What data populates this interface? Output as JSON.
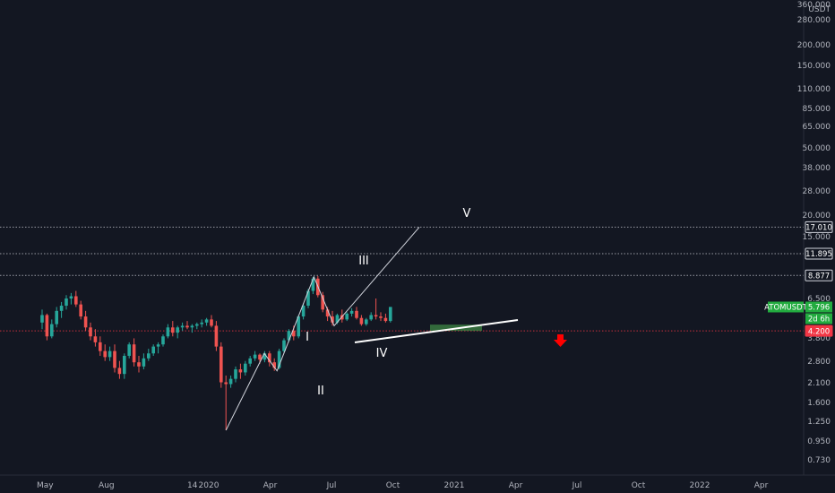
{
  "chart_data": {
    "type": "candlestick",
    "symbol": "ATOMUSDT",
    "currency": "USDT",
    "price_axis_labels": [
      "360.000",
      "280.000",
      "200.000",
      "150.000",
      "110.000",
      "85.000",
      "65.000",
      "50.000",
      "38.000",
      "28.000",
      "20.000",
      "15.000",
      "6.500",
      "3.800",
      "2.800",
      "2.100",
      "1.600",
      "1.250",
      "0.950",
      "0.730"
    ],
    "time_axis_labels": [
      "May",
      "Aug",
      "14",
      "2020",
      "Apr",
      "Jul",
      "Oct",
      "2021",
      "Apr",
      "Jul",
      "Oct",
      "2022",
      "Apr"
    ],
    "horizontal_levels": [
      {
        "value": 17.01,
        "label": "17.010",
        "style": "dotted"
      },
      {
        "value": 11.895,
        "label": "11.895",
        "style": "dotted"
      },
      {
        "value": 8.877,
        "label": "8.877",
        "style": "dotted"
      },
      {
        "value": 4.2,
        "label": "4.200",
        "style": "dotted",
        "color": "#f23645"
      }
    ],
    "last_price": {
      "value": 5.796,
      "label": "5.796",
      "symbol_label": "ATOMUSDT",
      "countdown": "2d 6h"
    },
    "wave_labels": [
      "I",
      "II",
      "III",
      "IV",
      "V"
    ],
    "colors": {
      "up": "#26a69a",
      "down": "#ef5350",
      "background": "#131722",
      "trendline": "#ffffff",
      "target": "#ff0000",
      "last_price": "#22ab3f"
    },
    "candles": [
      [
        4.7,
        5.6,
        4.3,
        5.2
      ],
      [
        5.2,
        5.3,
        3.7,
        3.9
      ],
      [
        3.9,
        4.9,
        3.8,
        4.6
      ],
      [
        4.6,
        5.8,
        4.4,
        5.5
      ],
      [
        5.5,
        6.2,
        5.0,
        5.9
      ],
      [
        5.9,
        6.8,
        5.6,
        6.5
      ],
      [
        6.5,
        7.0,
        6.0,
        6.7
      ],
      [
        6.7,
        7.2,
        5.8,
        6.0
      ],
      [
        6.0,
        6.3,
        4.9,
        5.1
      ],
      [
        5.1,
        5.5,
        4.2,
        4.4
      ],
      [
        4.4,
        4.7,
        3.7,
        3.9
      ],
      [
        3.9,
        4.3,
        3.4,
        3.6
      ],
      [
        3.6,
        3.9,
        3.0,
        3.2
      ],
      [
        3.2,
        3.5,
        2.8,
        2.95
      ],
      [
        2.95,
        3.4,
        2.8,
        3.2
      ],
      [
        3.2,
        3.5,
        2.4,
        2.55
      ],
      [
        2.55,
        2.8,
        2.2,
        2.35
      ],
      [
        2.35,
        3.1,
        2.2,
        3.0
      ],
      [
        3.0,
        3.6,
        2.9,
        3.5
      ],
      [
        3.5,
        3.8,
        2.6,
        2.75
      ],
      [
        2.75,
        3.0,
        2.4,
        2.6
      ],
      [
        2.6,
        3.1,
        2.5,
        2.9
      ],
      [
        2.9,
        3.3,
        2.8,
        3.1
      ],
      [
        3.1,
        3.5,
        3.0,
        3.4
      ],
      [
        3.4,
        3.6,
        3.1,
        3.5
      ],
      [
        3.5,
        4.0,
        3.4,
        3.9
      ],
      [
        3.9,
        4.6,
        3.8,
        4.4
      ],
      [
        4.4,
        4.8,
        3.9,
        4.1
      ],
      [
        4.1,
        4.5,
        3.8,
        4.4
      ],
      [
        4.4,
        4.7,
        4.2,
        4.5
      ],
      [
        4.5,
        4.8,
        4.3,
        4.4
      ],
      [
        4.4,
        4.6,
        4.1,
        4.5
      ],
      [
        4.5,
        4.7,
        4.3,
        4.6
      ],
      [
        4.6,
        4.9,
        4.4,
        4.7
      ],
      [
        4.7,
        5.0,
        4.5,
        4.9
      ],
      [
        4.9,
        5.2,
        4.4,
        4.5
      ],
      [
        4.5,
        4.8,
        3.2,
        3.4
      ],
      [
        3.4,
        3.6,
        1.95,
        2.1
      ],
      [
        2.1,
        2.3,
        1.1,
        2.05
      ],
      [
        2.05,
        2.3,
        1.95,
        2.2
      ],
      [
        2.2,
        2.6,
        2.1,
        2.5
      ],
      [
        2.5,
        2.7,
        2.2,
        2.4
      ],
      [
        2.4,
        2.8,
        2.3,
        2.7
      ],
      [
        2.7,
        3.0,
        2.6,
        2.9
      ],
      [
        2.9,
        3.2,
        2.8,
        3.05
      ],
      [
        3.05,
        3.1,
        2.7,
        2.85
      ],
      [
        2.85,
        3.2,
        2.75,
        3.1
      ],
      [
        3.1,
        3.2,
        2.6,
        2.75
      ],
      [
        2.75,
        2.9,
        2.45,
        2.55
      ],
      [
        2.55,
        3.3,
        2.5,
        3.2
      ],
      [
        3.2,
        3.8,
        3.1,
        3.7
      ],
      [
        3.7,
        4.3,
        3.6,
        4.2
      ],
      [
        4.2,
        4.5,
        3.7,
        3.9
      ],
      [
        3.9,
        5.2,
        3.8,
        5.1
      ],
      [
        5.1,
        6.1,
        4.9,
        5.9
      ],
      [
        5.9,
        7.4,
        5.7,
        7.2
      ],
      [
        7.2,
        8.7,
        6.9,
        8.5
      ],
      [
        8.5,
        8.8,
        6.6,
        6.8
      ],
      [
        6.8,
        7.1,
        5.4,
        5.6
      ],
      [
        5.6,
        5.8,
        4.8,
        5.1
      ],
      [
        5.1,
        5.5,
        4.5,
        4.7
      ],
      [
        4.7,
        5.3,
        4.6,
        5.2
      ],
      [
        5.2,
        5.6,
        4.7,
        4.9
      ],
      [
        4.9,
        5.4,
        4.8,
        5.3
      ],
      [
        5.3,
        5.7,
        5.1,
        5.5
      ],
      [
        5.5,
        5.8,
        4.9,
        5.0
      ],
      [
        5.0,
        5.2,
        4.5,
        4.6
      ],
      [
        4.6,
        5.0,
        4.5,
        4.9
      ],
      [
        4.9,
        5.4,
        4.8,
        5.2
      ],
      [
        5.2,
        6.5,
        4.9,
        5.1
      ],
      [
        5.1,
        5.4,
        4.8,
        5.0
      ],
      [
        5.0,
        5.3,
        4.7,
        4.8
      ],
      [
        4.8,
        5.8,
        4.7,
        5.8
      ]
    ]
  }
}
